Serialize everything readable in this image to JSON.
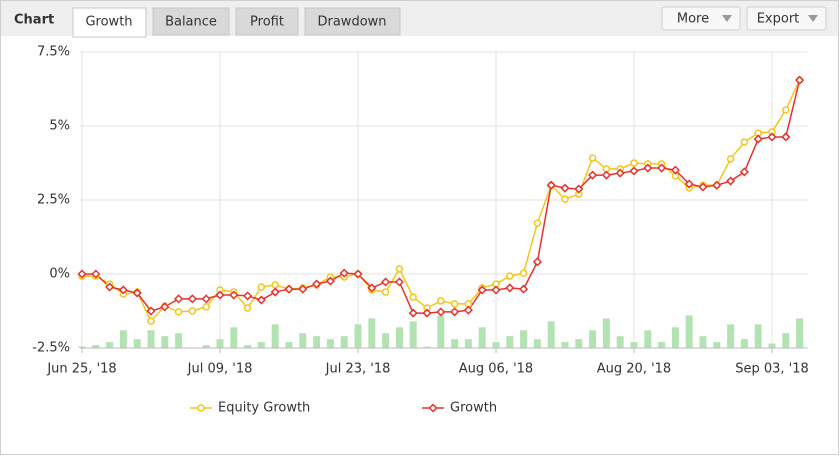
{
  "header": {
    "title": "Chart",
    "tabs": [
      "Growth",
      "Balance",
      "Profit",
      "Drawdown"
    ],
    "buttons": [
      "More",
      "Export"
    ]
  },
  "chart_data": {
    "type": "line",
    "categories": [
      "Jun 25, '18",
      null,
      null,
      null,
      null,
      null,
      null,
      null,
      null,
      null,
      "Jul 09, '18",
      null,
      null,
      null,
      null,
      null,
      null,
      null,
      null,
      null,
      "Jul 23, '18",
      null,
      null,
      null,
      null,
      null,
      null,
      null,
      null,
      null,
      "Aug 06, '18",
      null,
      null,
      null,
      null,
      null,
      null,
      null,
      null,
      null,
      "Aug 20, '18",
      null,
      null,
      null,
      null,
      null,
      null,
      null,
      null,
      null,
      "Sep 03, '18",
      null,
      null
    ],
    "series": [
      {
        "name": "Equity Growth",
        "color": "#f5c518",
        "marker": "circle",
        "values": [
          -0.07,
          -0.07,
          -0.34,
          -0.68,
          -0.61,
          -1.59,
          -1.08,
          -1.28,
          -1.25,
          -1.11,
          -0.54,
          -0.61,
          -1.15,
          -0.44,
          -0.37,
          -0.51,
          -0.47,
          -0.37,
          -0.1,
          -0.1,
          0,
          -0.54,
          -0.61,
          0.17,
          -0.78,
          -1.15,
          -0.91,
          -1.01,
          -1.01,
          -0.47,
          -0.34,
          -0.07,
          0.03,
          1.72,
          3.0,
          2.53,
          2.7,
          3.92,
          3.55,
          3.55,
          3.75,
          3.72,
          3.72,
          3.31,
          2.91,
          3.0,
          3.0,
          3.89,
          4.46,
          4.76,
          4.8,
          5.54,
          6.55
        ]
      },
      {
        "name": "Growth",
        "color": "#e8302d",
        "marker": "diamond",
        "values": [
          0,
          0,
          -0.44,
          -0.54,
          -0.64,
          -1.25,
          -1.11,
          -0.84,
          -0.84,
          -0.84,
          -0.71,
          -0.71,
          -0.74,
          -0.88,
          -0.61,
          -0.51,
          -0.51,
          -0.34,
          -0.24,
          0.03,
          0,
          -0.47,
          -0.27,
          -0.27,
          -1.32,
          -1.32,
          -1.28,
          -1.28,
          -1.22,
          -0.54,
          -0.54,
          -0.47,
          -0.51,
          0.41,
          3.0,
          2.9,
          2.87,
          3.34,
          3.34,
          3.41,
          3.48,
          3.58,
          3.58,
          3.51,
          3.04,
          2.94,
          3.0,
          3.14,
          3.45,
          4.56,
          4.63,
          4.63,
          6.55
        ]
      }
    ],
    "bars": {
      "color": "#b3e3b3",
      "values": [
        -2.45,
        -2.4,
        -2.3,
        -1.9,
        -2.2,
        -1.9,
        -2.1,
        -2.0,
        -2.5,
        -2.4,
        -2.2,
        -1.8,
        -2.4,
        -2.3,
        -1.7,
        -2.3,
        -2.0,
        -2.1,
        -2.2,
        -2.1,
        -1.7,
        -1.5,
        -2.0,
        -1.8,
        -1.6,
        -2.45,
        -1.4,
        -2.2,
        -2.2,
        -1.8,
        -2.3,
        -2.1,
        -1.9,
        -2.2,
        -1.6,
        -2.3,
        -2.2,
        -1.9,
        -1.5,
        -2.1,
        -2.3,
        -1.9,
        -2.3,
        -1.8,
        -1.4,
        -2.1,
        -2.3,
        -1.7,
        -2.2,
        -1.7,
        -2.35,
        -2.0,
        -1.5
      ]
    },
    "ylim": [
      -2.5,
      7.5
    ],
    "yticks": [
      {
        "value": -2.5,
        "label": "-2.5%"
      },
      {
        "value": 0,
        "label": "0%"
      },
      {
        "value": 2.5,
        "label": "2.5%"
      },
      {
        "value": 5,
        "label": "5%"
      },
      {
        "value": 7.5,
        "label": "7.5%"
      }
    ],
    "grid": true,
    "legend": "bottom"
  }
}
